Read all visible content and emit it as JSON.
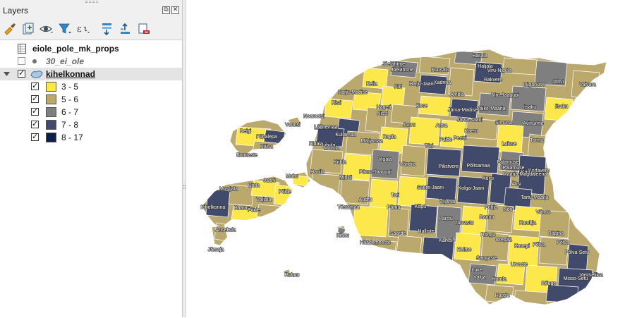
{
  "panel": {
    "title": "Layers",
    "float_glyph": "⧉",
    "close_glyph": "✕"
  },
  "toolbar": [
    {
      "name": "style-manager-icon",
      "color": "#e8a317"
    },
    {
      "name": "add-group-icon",
      "color": "#5c7a99"
    },
    {
      "name": "visibility-eye-icon",
      "color": "#3d4b5a"
    },
    {
      "name": "filter-legend-icon",
      "color": "#2f86c9"
    },
    {
      "name": "expression-filter-icon",
      "color": "#3d4b5a"
    },
    {
      "name": "expand-all-icon",
      "color": "#2f86c9"
    },
    {
      "name": "collapse-all-icon",
      "color": "#2f86c9"
    },
    {
      "name": "remove-layer-icon",
      "color": "#d21f1f"
    }
  ],
  "layers": {
    "table_layer": {
      "label": "eiole_pole_mk_props"
    },
    "point_layer": {
      "label": "30_ei_ole",
      "checked": false
    },
    "polygon_layer": {
      "label": "kihelkonnad",
      "checked": true,
      "expanded": true
    }
  },
  "legend": [
    {
      "label": "3 - 5",
      "color": "#fce84a",
      "checked": true
    },
    {
      "label": "5 - 6",
      "color": "#bba86c",
      "checked": true
    },
    {
      "label": "6 - 7",
      "color": "#7f7f7f",
      "checked": true
    },
    {
      "label": "7 - 8",
      "color": "#414a6b",
      "checked": true
    },
    {
      "label": "8 - 17",
      "color": "#0c1f49",
      "checked": true
    }
  ],
  "map": {
    "background": "#ffffff",
    "parish_labels": [
      "Haljala",
      "Jõelähtme",
      "Jõelähtme",
      "Kuusalu",
      "Haljala",
      "Viru-Nigula",
      "Vaivara",
      "Jõhvi",
      "Lüganuse",
      "Rakvere",
      "Kadrina",
      "Keila",
      "Jüri",
      "Harju-Jaani",
      "Harju-Madise",
      "Risti",
      "Nissi",
      "Hageri",
      "Kose",
      "Ambla",
      "Järva-Madise",
      "Väike-Maarja",
      "Viru-Jaagupi",
      "Iisaku",
      "Iisaku",
      "Noarootsi",
      "Läänemaa",
      "Läänemaa",
      "Vormsi",
      "Reigi",
      "Pühalepa",
      "Kullamaa",
      "Märjamaa",
      "Rapla",
      "Juuru",
      "Anna",
      "Järva-Jaani",
      "Simuna",
      "Avinurme",
      "Emmaste",
      "Käina",
      "Ridala",
      "Lihula",
      "Martna",
      "Koeru",
      "Paide",
      "Peetri",
      "Türi",
      "Laiuse",
      "Torma",
      "Hanila",
      "Kirbla",
      "Vigala",
      "Vändra",
      "Pilistvere",
      "Põltsamaa",
      "Palamuse",
      "Palamuse",
      "Kodavere",
      "Karuse",
      "Mihkli",
      "Pärnu-Jaagupi",
      "Maarja-Magdaleena",
      "Muhu",
      "Mustjala",
      "Kärla",
      "Jaani",
      "Põide",
      "Valjala",
      "Kihelkonna",
      "Kaarma",
      "Pöide",
      "Suure-Jaani",
      "Kolga-Jaani",
      "Kursi",
      "Äksi",
      "Tartu-Maarja",
      "Audru",
      "Tori",
      "Tõstamaa",
      "Pärnu",
      "Kõpu",
      "Viljandi",
      "Puhja",
      "Nõo",
      "Võnnu",
      "Kambja",
      "Ansekula",
      "Saarde",
      "Halliste",
      "Paistu",
      "Tarvastu",
      "Rannu",
      "Räpina",
      "Karksi",
      "Rõngu",
      "Otepää",
      "Kanepi",
      "Põlva",
      "Põlva",
      "Jämaja",
      "Kihnu",
      "Häädemeeste",
      "Helme",
      "Sangaste",
      "Urvaste",
      "Põlva-Setu",
      "Luke",
      "Valga",
      "Karula",
      "Rõuge",
      "Vastseliina",
      "Misso-Setu",
      "Hargla",
      "Ruhnu"
    ]
  }
}
